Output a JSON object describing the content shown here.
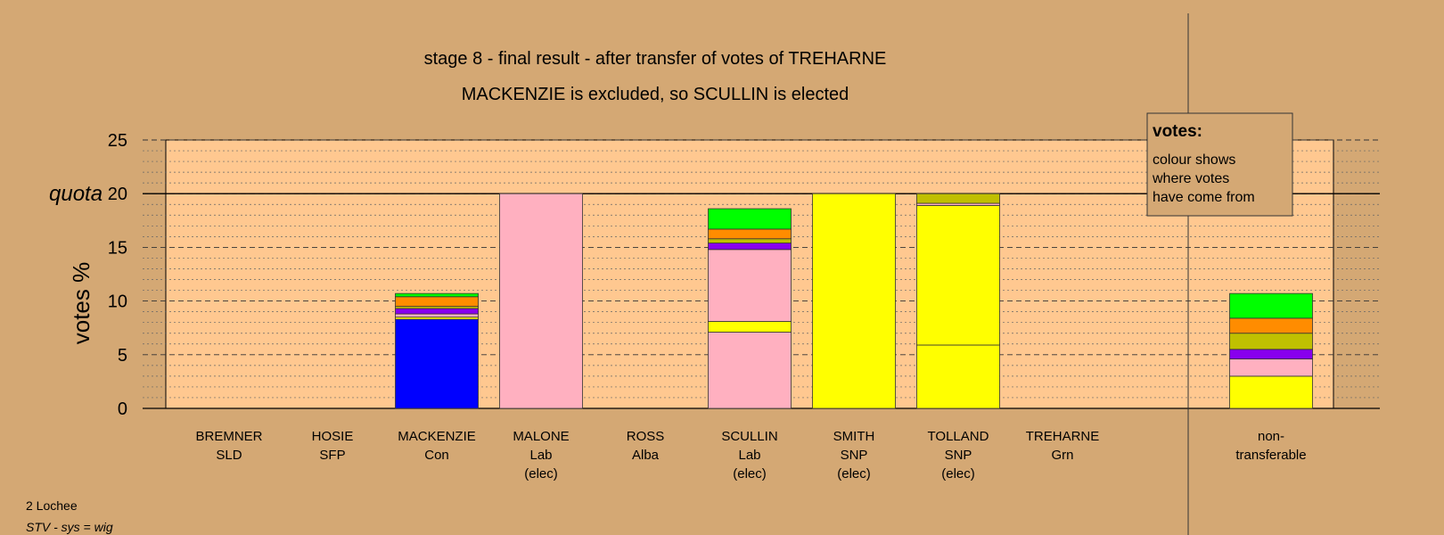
{
  "chart_data": {
    "type": "bar",
    "stacked": true,
    "title": "stage 8 - final result - after transfer of votes of TREHARNE",
    "subtitle": "MACKENZIE is excluded, so SCULLIN is elected",
    "ylabel": "votes %",
    "ylim": [
      0,
      25
    ],
    "yticks": [
      0,
      5,
      10,
      15,
      20,
      25
    ],
    "quota": {
      "label": "quota",
      "value": 20
    },
    "grid": "dashed major every 5, dotted minor every 1",
    "colors": {
      "SNP": "#ffff00",
      "Lab": "#ffb0c0",
      "Alba": "#8800ee",
      "Grn": "#c0c000",
      "SFP": "#ff8c00",
      "SLD": "#00ff00",
      "Con": "#0000ff"
    },
    "candidates": [
      {
        "name": "BREMNER",
        "party": "SLD",
        "note": "",
        "segments": []
      },
      {
        "name": "HOSIE",
        "party": "SFP",
        "note": "",
        "segments": []
      },
      {
        "name": "MACKENZIE",
        "party": "Con",
        "note": "",
        "segments": [
          {
            "from": "Con",
            "value": 8.3
          },
          {
            "from": "SNP",
            "value": 0.2
          },
          {
            "from": "Lab",
            "value": 0.3
          },
          {
            "from": "Alba",
            "value": 0.5
          },
          {
            "from": "Grn",
            "value": 0.2
          },
          {
            "from": "SFP",
            "value": 0.9
          },
          {
            "from": "SLD",
            "value": 0.3
          }
        ]
      },
      {
        "name": "MALONE",
        "party": "Lab",
        "note": "(elec)",
        "segments": [
          {
            "from": "Lab",
            "value": 20.0
          }
        ]
      },
      {
        "name": "ROSS",
        "party": "Alba",
        "note": "",
        "segments": []
      },
      {
        "name": "SCULLIN",
        "party": "Lab",
        "note": "(elec)",
        "segments": [
          {
            "from": "Lab",
            "value": 7.1
          },
          {
            "from": "SNP",
            "value": 1.0
          },
          {
            "from": "Lab",
            "value": 6.7
          },
          {
            "from": "Alba",
            "value": 0.6
          },
          {
            "from": "Grn",
            "value": 0.4
          },
          {
            "from": "SFP",
            "value": 0.9
          },
          {
            "from": "SLD",
            "value": 1.9
          }
        ]
      },
      {
        "name": "SMITH",
        "party": "SNP",
        "note": "(elec)",
        "segments": [
          {
            "from": "SNP",
            "value": 20.0
          }
        ]
      },
      {
        "name": "TOLLAND",
        "party": "SNP",
        "note": "(elec)",
        "segments": [
          {
            "from": "SNP",
            "value": 5.9
          },
          {
            "from": "SNP",
            "value": 13.0
          },
          {
            "from": "Lab",
            "value": 0.2
          },
          {
            "from": "Grn",
            "value": 0.9
          }
        ]
      },
      {
        "name": "TREHARNE",
        "party": "Grn",
        "note": "",
        "segments": []
      },
      {
        "name": "non-",
        "party": "transferable",
        "note": "",
        "segments": [
          {
            "from": "SNP",
            "value": 3.0
          },
          {
            "from": "Lab",
            "value": 1.6
          },
          {
            "from": "Alba",
            "value": 0.9
          },
          {
            "from": "Grn",
            "value": 1.5
          },
          {
            "from": "SFP",
            "value": 1.4
          },
          {
            "from": "SLD",
            "value": 2.3
          }
        ]
      }
    ]
  },
  "legend": {
    "heading": "votes:",
    "lines": [
      "colour shows",
      "where votes",
      "have come from"
    ]
  },
  "footer": {
    "constituency": "2 Lochee",
    "system": "STV - sys = wig"
  }
}
